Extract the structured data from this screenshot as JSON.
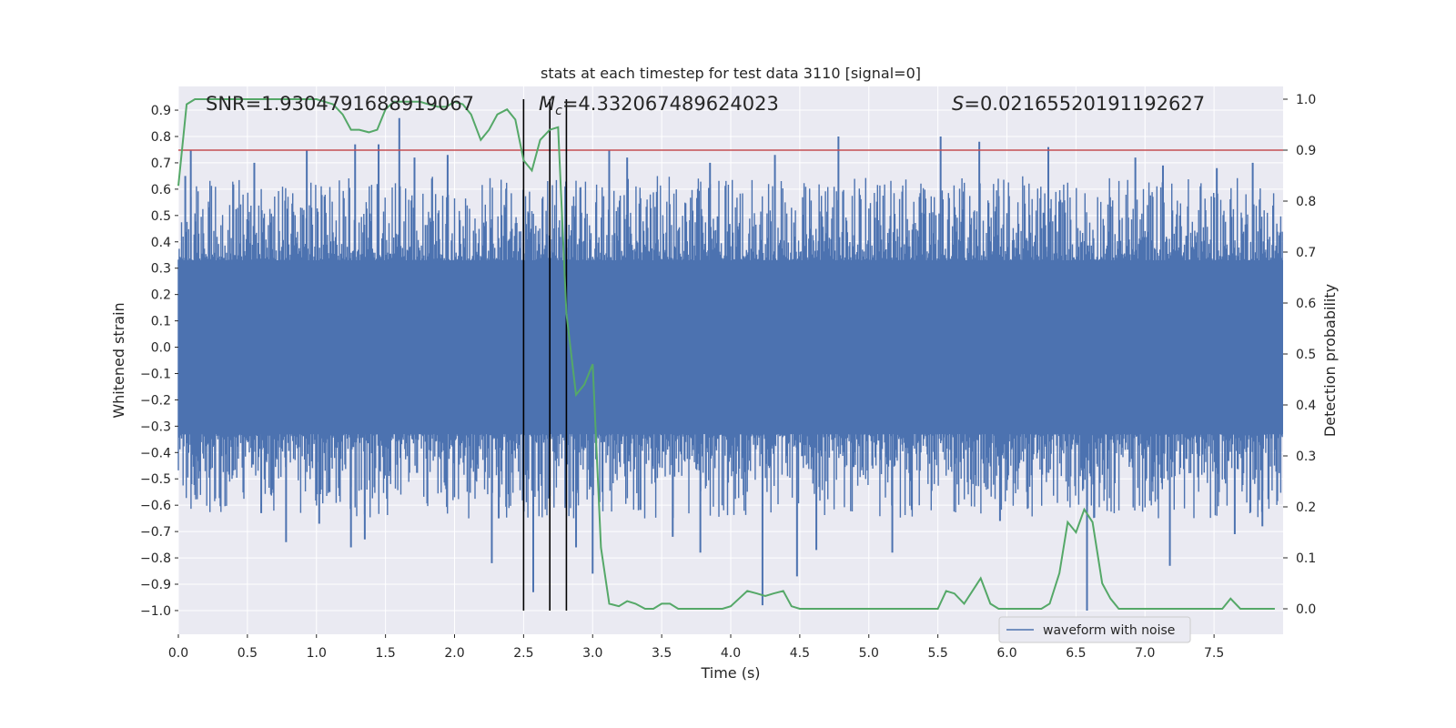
{
  "chart_data": {
    "type": "line",
    "title": "stats at each timestep for test data 3110 [signal=0]",
    "xlabel": "Time (s)",
    "ylabel_left": "Whitened strain",
    "ylabel_right": "Detection probability",
    "xlim": [
      0.0,
      8.0
    ],
    "ylim_left": [
      -1.09,
      0.99
    ],
    "ylim_right": [
      -0.05,
      1.025
    ],
    "x_ticks": [
      "0.0",
      "0.5",
      "1.0",
      "1.5",
      "2.0",
      "2.5",
      "3.0",
      "3.5",
      "4.0",
      "4.5",
      "5.0",
      "5.5",
      "6.0",
      "6.5",
      "7.0",
      "7.5"
    ],
    "x_tick_values": [
      0.0,
      0.5,
      1.0,
      1.5,
      2.0,
      2.5,
      3.0,
      3.5,
      4.0,
      4.5,
      5.0,
      5.5,
      6.0,
      6.5,
      7.0,
      7.5
    ],
    "y_left_ticks": [
      "0.9",
      "0.8",
      "0.7",
      "0.6",
      "0.5",
      "0.4",
      "0.3",
      "0.2",
      "0.1",
      "0.0",
      "−0.1",
      "−0.2",
      "−0.3",
      "−0.4",
      "−0.5",
      "−0.6",
      "−0.7",
      "−0.8",
      "−0.9",
      "−1.0"
    ],
    "y_left_tick_values": [
      0.9,
      0.8,
      0.7,
      0.6,
      0.5,
      0.4,
      0.3,
      0.2,
      0.1,
      0.0,
      -0.1,
      -0.2,
      -0.3,
      -0.4,
      -0.5,
      -0.6,
      -0.7,
      -0.8,
      -0.9,
      -1.0
    ],
    "y_right_ticks": [
      "1.0",
      "0.9",
      "0.8",
      "0.7",
      "0.6",
      "0.5",
      "0.4",
      "0.3",
      "0.2",
      "0.1",
      "0.0"
    ],
    "y_right_tick_values": [
      1.0,
      0.9,
      0.8,
      0.7,
      0.6,
      0.5,
      0.4,
      0.3,
      0.2,
      0.1,
      0.0
    ],
    "annotations": {
      "snr": "SNR=1.9304791688919067",
      "mc_symbol": "M",
      "mc_sub": "c",
      "mc_value": "=4.332067489624023",
      "s_symbol": "S",
      "s_value": "=0.021655201911926 27"
    },
    "threshold": 0.9,
    "vlines": [
      2.5,
      2.69,
      2.81
    ],
    "series": [
      {
        "name": "waveform with noise",
        "color": "#4c72b0",
        "axis": "left",
        "core_amplitude": 0.33,
        "peaks": [
          {
            "x": 0.05,
            "y": 0.65
          },
          {
            "x": 0.09,
            "y": 0.75
          },
          {
            "x": 0.55,
            "y": 0.7
          },
          {
            "x": 0.6,
            "y": -0.63
          },
          {
            "x": 0.78,
            "y": -0.74
          },
          {
            "x": 0.93,
            "y": 0.75
          },
          {
            "x": 1.02,
            "y": -0.67
          },
          {
            "x": 1.25,
            "y": -0.76
          },
          {
            "x": 1.28,
            "y": 0.77
          },
          {
            "x": 1.35,
            "y": -0.73
          },
          {
            "x": 1.45,
            "y": 0.77
          },
          {
            "x": 1.6,
            "y": 0.87
          },
          {
            "x": 1.71,
            "y": 0.72
          },
          {
            "x": 1.95,
            "y": 0.73
          },
          {
            "x": 2.27,
            "y": -0.82
          },
          {
            "x": 2.32,
            "y": -0.65
          },
          {
            "x": 2.57,
            "y": -0.93
          },
          {
            "x": 2.88,
            "y": -0.76
          },
          {
            "x": 3.0,
            "y": -0.86
          },
          {
            "x": 3.12,
            "y": 0.75
          },
          {
            "x": 3.25,
            "y": 0.72
          },
          {
            "x": 3.58,
            "y": -0.72
          },
          {
            "x": 3.78,
            "y": -0.78
          },
          {
            "x": 3.85,
            "y": 0.7
          },
          {
            "x": 4.23,
            "y": -0.98
          },
          {
            "x": 4.32,
            "y": 0.73
          },
          {
            "x": 4.48,
            "y": -0.87
          },
          {
            "x": 4.62,
            "y": -0.77
          },
          {
            "x": 4.78,
            "y": 0.8
          },
          {
            "x": 5.17,
            "y": -0.78
          },
          {
            "x": 5.52,
            "y": 0.8
          },
          {
            "x": 5.8,
            "y": 0.78
          },
          {
            "x": 5.95,
            "y": -0.66
          },
          {
            "x": 6.3,
            "y": 0.76
          },
          {
            "x": 6.58,
            "y": -1.0
          },
          {
            "x": 6.93,
            "y": 0.72
          },
          {
            "x": 7.13,
            "y": 0.69
          },
          {
            "x": 7.18,
            "y": -0.83
          },
          {
            "x": 7.52,
            "y": 0.68
          },
          {
            "x": 7.65,
            "y": -0.71
          },
          {
            "x": 7.78,
            "y": 0.7
          },
          {
            "x": 7.85,
            "y": -0.68
          }
        ]
      },
      {
        "name": "detection probability",
        "color": "#55a868",
        "axis": "right",
        "x": [
          0.0,
          0.06,
          0.12,
          0.19,
          0.25,
          0.31,
          0.38,
          0.44,
          0.5,
          0.56,
          0.62,
          0.69,
          0.75,
          0.81,
          0.88,
          0.94,
          1.0,
          1.06,
          1.12,
          1.19,
          1.25,
          1.31,
          1.38,
          1.44,
          1.5,
          1.56,
          1.62,
          1.69,
          1.75,
          1.81,
          1.88,
          1.94,
          2.0,
          2.06,
          2.12,
          2.19,
          2.25,
          2.31,
          2.38,
          2.44,
          2.5,
          2.56,
          2.62,
          2.69,
          2.75,
          2.81,
          2.88,
          2.94,
          3.0,
          3.06,
          3.12,
          3.19,
          3.25,
          3.31,
          3.38,
          3.44,
          3.5,
          3.56,
          3.62,
          3.69,
          3.75,
          3.81,
          3.88,
          3.94,
          4.0,
          4.06,
          4.12,
          4.19,
          4.25,
          4.31,
          4.38,
          4.44,
          4.5,
          4.56,
          4.62,
          4.69,
          4.75,
          4.81,
          4.88,
          4.94,
          5.0,
          5.06,
          5.12,
          5.19,
          5.25,
          5.31,
          5.38,
          5.44,
          5.5,
          5.56,
          5.62,
          5.69,
          5.75,
          5.81,
          5.88,
          5.94,
          6.0,
          6.06,
          6.12,
          6.19,
          6.25,
          6.31,
          6.38,
          6.44,
          6.5,
          6.56,
          6.62,
          6.69,
          6.75,
          6.81,
          6.88,
          6.94,
          7.0,
          7.06,
          7.12,
          7.19,
          7.25,
          7.31,
          7.38,
          7.44,
          7.5,
          7.56,
          7.62,
          7.69,
          7.75,
          7.81,
          7.88,
          7.94
        ],
        "y": [
          0.83,
          0.99,
          1.0,
          1.0,
          1.0,
          1.0,
          1.0,
          1.0,
          1.0,
          1.0,
          1.0,
          1.0,
          1.0,
          1.0,
          1.0,
          1.0,
          1.0,
          0.995,
          0.99,
          0.97,
          0.94,
          0.94,
          0.935,
          0.94,
          0.98,
          0.995,
          0.995,
          0.995,
          0.995,
          0.99,
          0.985,
          0.985,
          0.995,
          0.99,
          0.97,
          0.92,
          0.94,
          0.97,
          0.98,
          0.96,
          0.88,
          0.86,
          0.92,
          0.94,
          0.945,
          0.58,
          0.42,
          0.44,
          0.48,
          0.12,
          0.01,
          0.005,
          0.015,
          0.01,
          0.0,
          0.0,
          0.01,
          0.01,
          0.0,
          0.0,
          0.0,
          0.0,
          0.0,
          0.0,
          0.005,
          0.02,
          0.035,
          0.03,
          0.025,
          0.03,
          0.035,
          0.005,
          0.0,
          0.0,
          0.0,
          0.0,
          0.0,
          0.0,
          0.0,
          0.0,
          0.0,
          0.0,
          0.0,
          0.0,
          0.0,
          0.0,
          0.0,
          0.0,
          0.0,
          0.035,
          0.03,
          0.01,
          0.035,
          0.06,
          0.01,
          0.0,
          0.0,
          0.0,
          0.0,
          0.0,
          0.0,
          0.01,
          0.07,
          0.17,
          0.15,
          0.195,
          0.17,
          0.05,
          0.02,
          0.0,
          0.0,
          0.0,
          0.0,
          0.0,
          0.0,
          0.0,
          0.0,
          0.0,
          0.0,
          0.0,
          0.0,
          0.0,
          0.02,
          0.0,
          0.0,
          0.0,
          0.0,
          0.0
        ]
      }
    ],
    "legend": {
      "label": "waveform with noise",
      "position": "lower-right"
    }
  },
  "colors": {
    "axes_bg": "#eaeaf2",
    "grid": "#ffffff",
    "threshold": "#c44e52",
    "vline": "#000000"
  }
}
